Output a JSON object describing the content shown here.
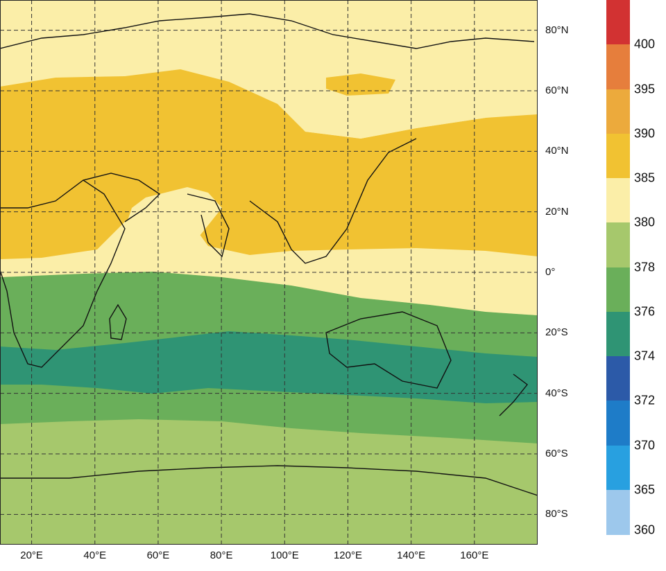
{
  "map": {
    "lat_labels": [
      {
        "text": "80°N",
        "lat": 80
      },
      {
        "text": "60°N",
        "lat": 60
      },
      {
        "text": "40°N",
        "lat": 40
      },
      {
        "text": "20°N",
        "lat": 20
      },
      {
        "text": "0°",
        "lat": 0
      },
      {
        "text": "20°S",
        "lat": -20
      },
      {
        "text": "40°S",
        "lat": -40
      },
      {
        "text": "60°S",
        "lat": -60
      },
      {
        "text": "80°S",
        "lat": -80
      }
    ],
    "lon_labels": [
      {
        "text": "20°E",
        "lon": 20
      },
      {
        "text": "40°E",
        "lon": 40
      },
      {
        "text": "60°E",
        "lon": 60
      },
      {
        "text": "80°E",
        "lon": 80
      },
      {
        "text": "100°E",
        "lon": 100
      },
      {
        "text": "120°E",
        "lon": 120
      },
      {
        "text": "140°E",
        "lon": 140
      },
      {
        "text": "160°E",
        "lon": 160
      }
    ],
    "lon_range": [
      10,
      180
    ],
    "lat_range": [
      -90,
      90
    ],
    "grid": true,
    "band_colors": {
      "c380_385": "#fbeea8",
      "c385_390": "#f1c232",
      "c378_380": "#a6c86c",
      "c376_378": "#6aaf5a",
      "c374_376": "#2f9474"
    }
  },
  "colorbar": {
    "levels": [
      {
        "label": "",
        "color": "#d23232"
      },
      {
        "label": "400",
        "color": "#e67e3c"
      },
      {
        "label": "395",
        "color": "#ecaa3c"
      },
      {
        "label": "390",
        "color": "#f1c232"
      },
      {
        "label": "385",
        "color": "#fbeea8"
      },
      {
        "label": "380",
        "color": "#a6c86c"
      },
      {
        "label": "378",
        "color": "#6aaf5a"
      },
      {
        "label": "376",
        "color": "#2f9474"
      },
      {
        "label": "374",
        "color": "#2c5aa8"
      },
      {
        "label": "372",
        "color": "#1e7cc8"
      },
      {
        "label": "370",
        "color": "#28a0e0"
      },
      {
        "label": "365",
        "color": "#9dc8ec"
      },
      {
        "label": "360",
        "color": ""
      }
    ]
  }
}
